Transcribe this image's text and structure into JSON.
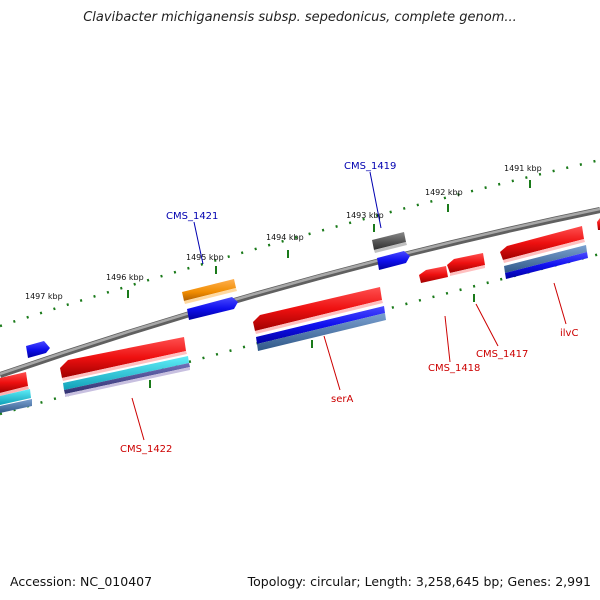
{
  "title": "Clavibacter michiganensis subsp. sepedonicus, complete genom...",
  "footer": {
    "accession": "Accession: NC_010407",
    "stats": "Topology: circular; Length: 3,258,645 bp; Genes: 2,991"
  },
  "ticks": [
    "1497 kbp",
    "1496 kbp",
    "1495 kbp",
    "1494 kbp",
    "1493 kbp",
    "1492 kbp",
    "1491 kbp"
  ],
  "genes": [
    {
      "name": "CMS_1421",
      "color": "#0000b0"
    },
    {
      "name": "CMS_1419",
      "color": "#0000b0"
    },
    {
      "name": "CMS_1422",
      "color": "#cc0000"
    },
    {
      "name": "serA",
      "color": "#cc0000"
    },
    {
      "name": "CMS_1418",
      "color": "#cc0000"
    },
    {
      "name": "CMS_1417",
      "color": "#cc0000"
    },
    {
      "name": "ilvC",
      "color": "#cc0000"
    }
  ],
  "colors": {
    "backbone": "#808080",
    "tick": "#1a7a1a",
    "forward_gene": "#1a1aee",
    "reverse_gene": "#ee1a1a",
    "rna": "#f08c00",
    "other": "#505050",
    "cyan": "#18c8d8",
    "steel": "#4a78b0",
    "purple": "#4a4890"
  }
}
